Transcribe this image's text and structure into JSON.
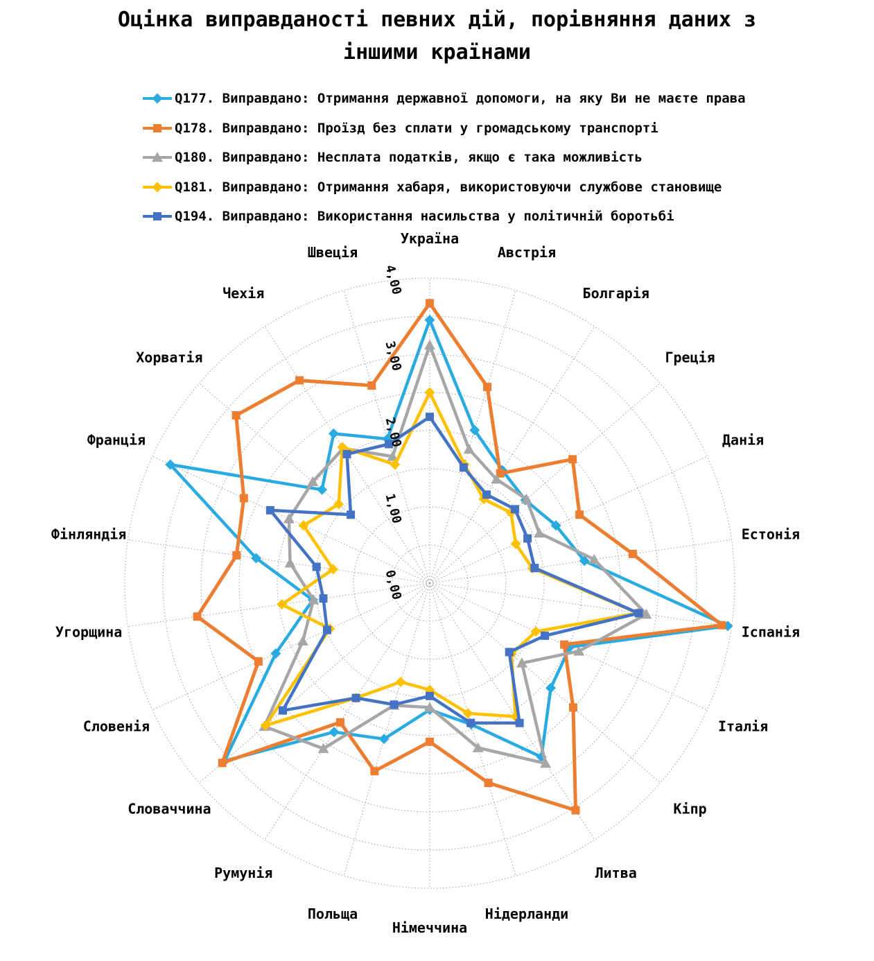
{
  "title": "Оцінка виправданості певних дій, порівняння даних з іншими країнами",
  "chart_data": {
    "type": "radar",
    "title": "Оцінка виправданості певних дій, порівняння даних з іншими країнами",
    "categories": [
      "Україна",
      "Австрія",
      "Болгарія",
      "Греція",
      "Данія",
      "Естонія",
      "Іспанія",
      "Італія",
      "Кіпр",
      "Литва",
      "Нідерланди",
      "Німеччина",
      "Польща",
      "Румунія",
      "Словаччина",
      "Словенія",
      "Угорщина",
      "Фінляндія",
      "Франція",
      "Хорватія",
      "Чехія",
      "Швеція"
    ],
    "series": [
      {
        "id": "Q177",
        "label": "Q177. Виправдано: Отримання державної допомоги, на яку Ви не маєте права",
        "color": "#29ABE2",
        "marker": "diamond",
        "values": [
          3.45,
          2.09,
          1.76,
          1.66,
          1.82,
          2.05,
          3.95,
          2.02,
          2.1,
          2.71,
          1.93,
          1.66,
          2.13,
          2.32,
          3.56,
          2.22,
          1.55,
          2.3,
          3.74,
          1.87,
          2.33,
          1.97
        ]
      },
      {
        "id": "Q178",
        "label": "Q178. Виправдано: Проїзд без сплати у громадському транспорті",
        "color": "#ED7D31",
        "marker": "square",
        "values": [
          3.67,
          2.68,
          1.71,
          2.48,
          2.16,
          2.69,
          3.87,
          1.94,
          2.49,
          3.54,
          2.73,
          2.08,
          2.57,
          2.17,
          3.6,
          2.47,
          3.08,
          2.56,
          2.68,
          3.36,
          3.16,
          2.7
        ]
      },
      {
        "id": "Q180",
        "label": "Q180. Виправдано: Несплата податків, якщо є така можливість",
        "color": "#A6A6A6",
        "marker": "triangle",
        "values": [
          3.12,
          1.83,
          1.62,
          1.68,
          1.58,
          2.18,
          2.87,
          2.15,
          1.6,
          2.81,
          2.25,
          1.63,
          1.67,
          2.58,
          2.87,
          1.83,
          1.54,
          1.85,
          2.03,
          2.03,
          2.1,
          1.73
        ]
      },
      {
        "id": "Q181",
        "label": "Q181. Виправдано: Отримання хабаря, використовуючи службове становище",
        "color": "#FFC000",
        "marker": "diamond",
        "values": [
          2.5,
          1.62,
          1.31,
          1.41,
          1.24,
          1.36,
          2.76,
          1.53,
          1.42,
          2.08,
          1.78,
          1.4,
          1.35,
          1.79,
          2.85,
          1.44,
          1.96,
          1.28,
          1.82,
          1.58,
          2.12,
          1.62
        ]
      },
      {
        "id": "Q194",
        "label": "Q194. Виправдано: Використання насильства у політичній боротьбі",
        "color": "#4472C4",
        "marker": "square",
        "values": [
          2.18,
          1.58,
          1.38,
          1.48,
          1.41,
          1.39,
          2.77,
          1.66,
          1.38,
          2.18,
          1.91,
          1.48,
          1.66,
          1.79,
          2.55,
          1.48,
          1.41,
          1.5,
          2.3,
          1.37,
          2.01,
          1.9
        ]
      }
    ],
    "radial_axis": {
      "min": 0,
      "max": 4,
      "tick_step": 1,
      "minor_step": 0.5,
      "tick_labels": [
        "0,00",
        "1,00",
        "2,00",
        "3,00",
        "4,00"
      ]
    },
    "grid": true,
    "grid_color": "#9b9b9b",
    "legend_position": "top-left"
  }
}
